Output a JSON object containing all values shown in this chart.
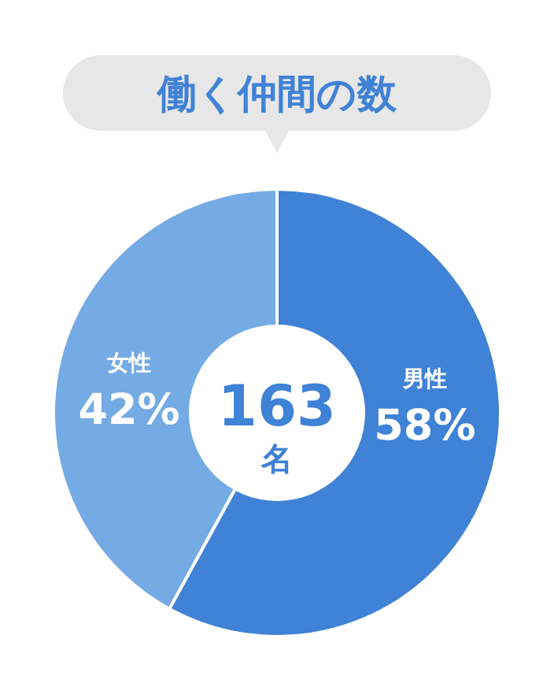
{
  "chart_data": {
    "type": "donut",
    "title": "働く仲間の数",
    "categories": [
      "男性",
      "女性"
    ],
    "values": [
      58,
      42
    ],
    "colors": [
      "#3f82d6",
      "#74abe4"
    ],
    "value_labels": [
      "58%",
      "42%"
    ],
    "annotations": [
      "163",
      "名"
    ]
  }
}
